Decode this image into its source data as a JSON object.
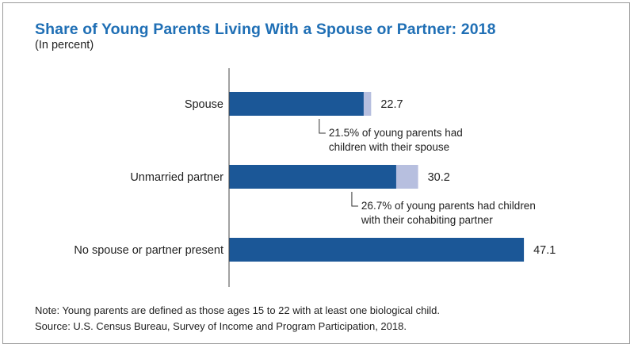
{
  "chart_data": {
    "type": "bar",
    "orientation": "horizontal",
    "title": "Share of Young Parents Living With a Spouse or Partner: 2018",
    "subtitle": "(In percent)",
    "categories": [
      "Spouse",
      "Unmarried partner",
      "No spouse or partner present"
    ],
    "values": [
      22.7,
      30.2,
      47.1
    ],
    "value_labels": [
      "22.7",
      "30.2",
      "47.1"
    ],
    "subset_values": [
      21.5,
      26.7,
      null
    ],
    "xlim": [
      0,
      50
    ],
    "grid": false,
    "legend": "none",
    "annotations": [
      {
        "category": "Spouse",
        "lines": [
          "21.5% of young parents had",
          "children with their spouse"
        ]
      },
      {
        "category": "Unmarried partner",
        "lines": [
          "26.7% of young parents had children",
          "with their cohabiting partner"
        ]
      }
    ]
  },
  "colors": {
    "title": "#1f6fb5",
    "bar_main": "#1b5797",
    "bar_remainder": "#b7bfdf",
    "axis": "#444444"
  },
  "footer": {
    "note": "Note: Young parents are defined as those ages 15 to 22 with at least one biological child.",
    "source": "Source: U.S. Census Bureau, Survey of Income and Program Participation, 2018."
  }
}
